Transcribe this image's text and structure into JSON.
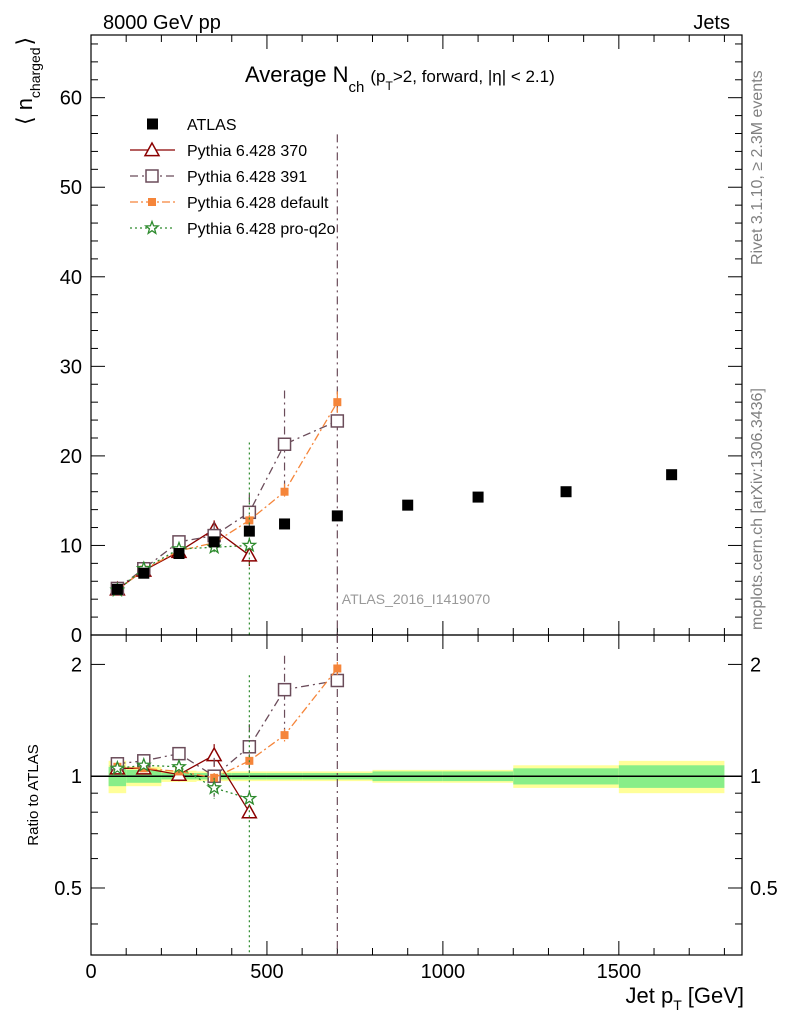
{
  "header": {
    "left": "8000 GeV pp",
    "right": "Jets"
  },
  "side_labels": {
    "rivet": "Rivet 3.1.10, ≥ 2.3M events",
    "mcplots": "mcplots.cern.ch [arXiv:1306.3436]"
  },
  "chart_data": {
    "type": "scatter",
    "title": "Average N",
    "title_sub": "ch",
    "title_rest": "(p",
    "title_rest_sub": "T",
    "title_rest2": ">2, forward, |η| < 2.1)",
    "analysis_tag": "ATLAS_2016_I1419070",
    "xlabel": "Jet p",
    "xlabel_sub": "T",
    "xlabel_unit": "[GeV]",
    "ylabel_main": "⟨ n",
    "ylabel_sub": "charged",
    "ylabel_close": "⟩",
    "ratio_ylabel": "Ratio to ATLAS",
    "xlim": [
      0,
      1850
    ],
    "ylim": [
      0,
      67
    ],
    "ratio_ylim": [
      0.33,
      2.4
    ],
    "ratio_log": true,
    "xticks": [
      0,
      500,
      1000,
      1500
    ],
    "yticks": [
      0,
      10,
      20,
      30,
      40,
      50,
      60
    ],
    "ratio_yticks": [
      0.5,
      1,
      2
    ],
    "legend_position": "top-left",
    "data": {
      "name": "ATLAS",
      "color": "#000000",
      "x": [
        75,
        150,
        250,
        350,
        450,
        550,
        700,
        900,
        1100,
        1350,
        1650
      ],
      "y": [
        5.1,
        6.9,
        9.1,
        10.4,
        11.6,
        12.4,
        13.3,
        14.5,
        15.4,
        16.0,
        17.9
      ],
      "xlo": [
        50,
        100,
        200,
        300,
        400,
        500,
        600,
        800,
        1000,
        1200,
        1500
      ],
      "xhi": [
        100,
        200,
        300,
        400,
        500,
        600,
        800,
        1000,
        1200,
        1500,
        1800
      ],
      "band_stat": [
        0.06,
        0.04,
        0.02,
        0.02,
        0.02,
        0.02,
        0.02,
        0.03,
        0.03,
        0.05,
        0.07
      ],
      "band_tot": [
        0.1,
        0.06,
        0.035,
        0.03,
        0.03,
        0.03,
        0.03,
        0.04,
        0.04,
        0.07,
        0.1
      ]
    },
    "series": [
      {
        "name": "Pythia 6.428 370",
        "color": "#8b0000",
        "marker": "triangle",
        "dash": "",
        "x": [
          75,
          150,
          250,
          350,
          450
        ],
        "y": [
          5.1,
          7.2,
          9.3,
          11.8,
          8.9
        ],
        "err": [
          0.2,
          0.3,
          0.4,
          1.0,
          1.2
        ],
        "ratio": [
          1.05,
          1.05,
          1.01,
          1.14,
          0.8
        ],
        "ratio_err": [
          0.03,
          0.03,
          0.04,
          0.08,
          0.03
        ]
      },
      {
        "name": "Pythia 6.428 391",
        "color": "#6b4c5a",
        "marker": "square-open",
        "dash": "8,4,2,4",
        "x": [
          75,
          150,
          250,
          350,
          450,
          550,
          700
        ],
        "y": [
          5.2,
          7.4,
          10.4,
          11.1,
          13.7,
          21.3,
          23.9
        ],
        "err": [
          0.2,
          0.3,
          0.4,
          1.5,
          2.0,
          6.0,
          32.0
        ],
        "ratio": [
          1.08,
          1.1,
          1.15,
          1.0,
          1.2,
          1.71,
          1.81
        ],
        "ratio_err": [
          0.03,
          0.03,
          0.04,
          0.12,
          0.18,
          0.4,
          2.0
        ]
      },
      {
        "name": "Pythia 6.428 default",
        "color": "#f5853a",
        "marker": "square-filled",
        "dash": "8,3,2,3",
        "x": [
          75,
          150,
          250,
          350,
          450,
          550,
          700
        ],
        "y": [
          5.0,
          7.3,
          9.4,
          10.3,
          12.8,
          16.0,
          26.0
        ],
        "err": [
          0.2,
          0.3,
          0.3,
          0.4,
          0.6,
          0.9,
          1.2
        ],
        "ratio": [
          1.06,
          1.05,
          1.03,
          0.99,
          1.1,
          1.29,
          1.95
        ],
        "ratio_err": [
          0.02,
          0.02,
          0.02,
          0.03,
          0.04,
          0.05,
          0.08
        ]
      },
      {
        "name": "Pythia 6.428 pro-q2o",
        "color": "#2e8b2e",
        "marker": "star",
        "dash": "2,3",
        "x": [
          75,
          150,
          250,
          350,
          450
        ],
        "y": [
          5.0,
          7.4,
          9.6,
          9.8,
          10.0
        ],
        "err": [
          0.2,
          0.3,
          0.4,
          0.8,
          11.5
        ],
        "ratio": [
          1.05,
          1.07,
          1.06,
          0.93,
          0.87
        ],
        "ratio_err": [
          0.03,
          0.03,
          0.04,
          0.06,
          1.0
        ]
      }
    ]
  }
}
